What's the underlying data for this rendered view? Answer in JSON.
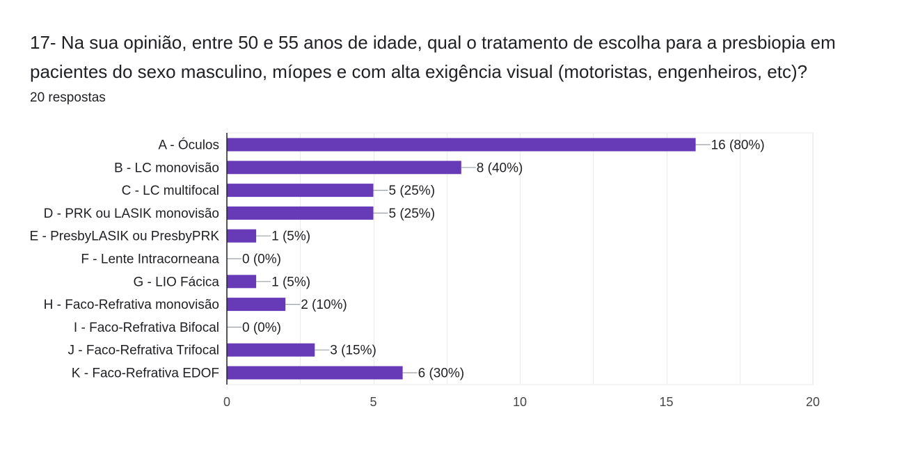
{
  "question": {
    "title": "17- Na sua opinião, entre 50 e 55 anos de idade, qual o tratamento de escolha para a presbiopia em pacientes do sexo masculino, míopes e com alta exigência visual (motoristas, engenheiros, etc)?",
    "response_count": "20 respostas"
  },
  "colors": {
    "bar": "#673ab7",
    "grid": "#e8eaed",
    "axis": "#202124",
    "text": "#202124",
    "tick_text": "#444746"
  },
  "chart_data": {
    "type": "bar",
    "orientation": "horizontal",
    "title": "",
    "xlabel": "",
    "ylabel": "",
    "xlim": [
      0,
      20
    ],
    "x_ticks": [
      0,
      5,
      10,
      15,
      20
    ],
    "grid": true,
    "categories": [
      "A - Óculos",
      "B - LC monovisão",
      "C - LC multifocal",
      "D - PRK ou LASIK monovisão",
      "E - PresbyLASIK ou PresbyPRK",
      "F - Lente Intracorneana",
      "G - LIO Fácica",
      "H - Faco-Refrativa monovisão",
      "I - Faco-Refrativa Bifocal",
      "J - Faco-Refrativa Trifocal",
      "K - Faco-Refrativa EDOF"
    ],
    "values": [
      16,
      8,
      5,
      5,
      1,
      0,
      1,
      2,
      0,
      3,
      6
    ],
    "data_labels": [
      "16 (80%)",
      "8 (40%)",
      "5 (25%)",
      "5 (25%)",
      "1 (5%)",
      "0 (0%)",
      "1 (5%)",
      "2 (10%)",
      "0 (0%)",
      "3 (15%)",
      "6 (30%)"
    ]
  }
}
